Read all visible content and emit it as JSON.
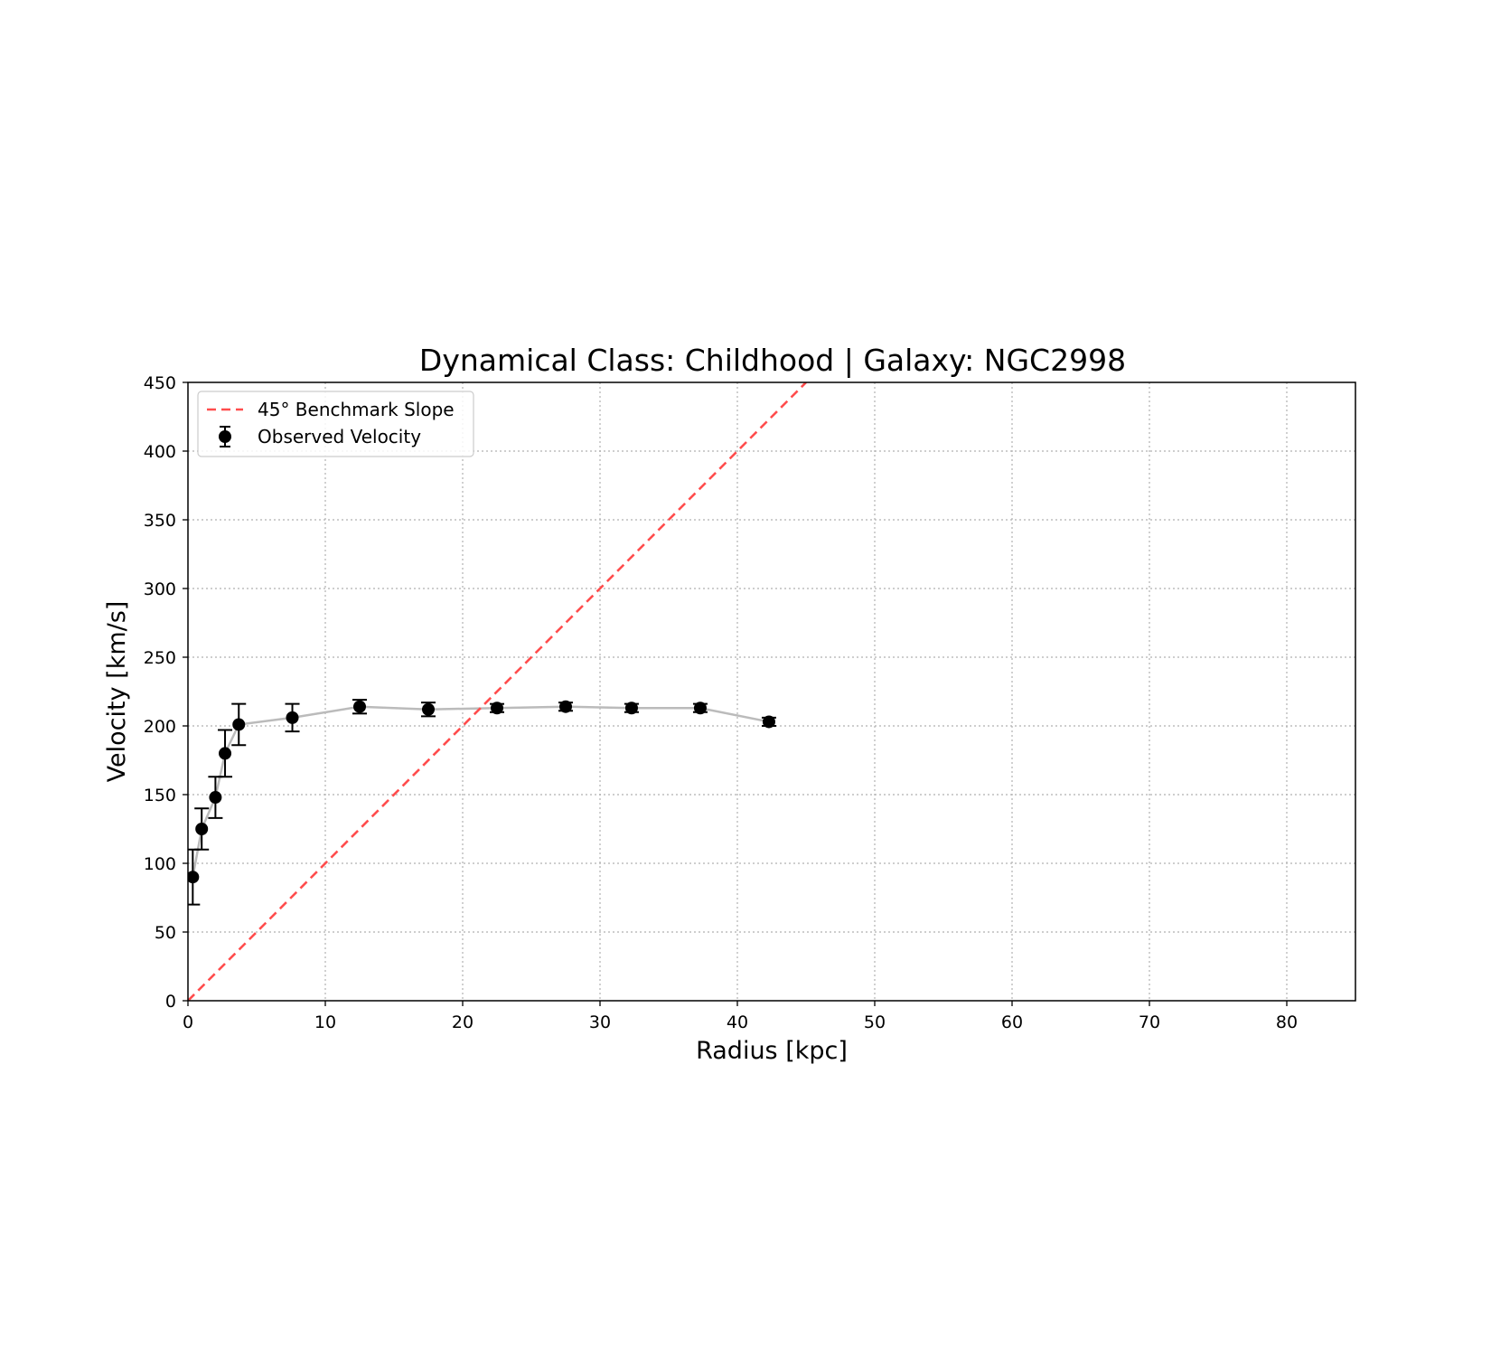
{
  "chart_data": {
    "type": "scatter",
    "title": "Dynamical Class: Childhood | Galaxy: NGC2998",
    "xlabel": "Radius [kpc]",
    "ylabel": "Velocity [km/s]",
    "xlim": [
      0,
      85
    ],
    "ylim": [
      0,
      450
    ],
    "xticks": [
      0,
      10,
      20,
      30,
      40,
      50,
      60,
      70,
      80
    ],
    "yticks": [
      0,
      50,
      100,
      150,
      200,
      250,
      300,
      350,
      400,
      450
    ],
    "grid": true,
    "legend_position": "top-left",
    "series": [
      {
        "name": "45° Benchmark Slope",
        "kind": "line",
        "style": "dashed",
        "color": "#ff4d4d",
        "x": [
          0,
          45
        ],
        "y": [
          0,
          450
        ]
      },
      {
        "name": "Observed Velocity",
        "kind": "errorbar",
        "color": "#000000",
        "line_color": "#bbbbbb",
        "x": [
          0.35,
          1.0,
          2.0,
          2.7,
          3.7,
          7.6,
          12.5,
          17.5,
          22.5,
          27.5,
          32.3,
          37.3,
          42.3
        ],
        "y": [
          90,
          125,
          148,
          180,
          201,
          206,
          214,
          212,
          213,
          214,
          213,
          213,
          203
        ],
        "yerr": [
          20,
          15,
          15,
          17,
          15,
          10,
          5,
          5,
          3,
          3,
          3,
          3,
          3
        ]
      }
    ]
  }
}
